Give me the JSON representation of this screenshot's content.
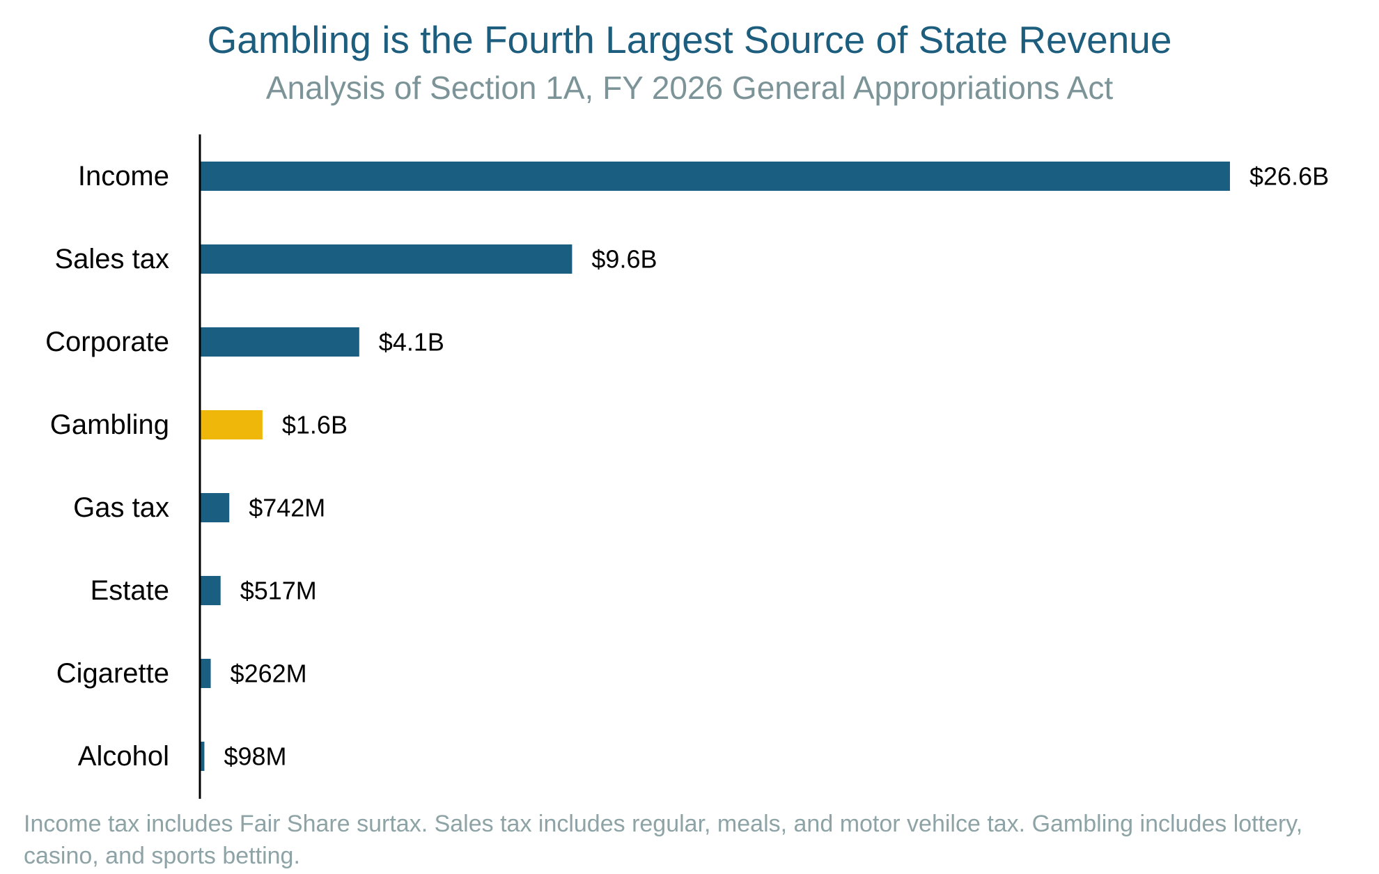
{
  "chart_data": {
    "type": "bar",
    "orientation": "horizontal",
    "title": "Gambling is the Fourth Largest Source of State Revenue",
    "subtitle": "Analysis of Section 1A, FY 2026 General Appropriations Act",
    "categories": [
      "Income",
      "Sales tax",
      "Corporate",
      "Gambling",
      "Gas tax",
      "Estate",
      "Cigarette",
      "Alcohol"
    ],
    "values": [
      26.6,
      9.6,
      4.1,
      1.6,
      0.742,
      0.517,
      0.262,
      0.098
    ],
    "value_unit": "billions of dollars",
    "data_labels": [
      "$26.6B",
      "$9.6B",
      "$4.1B",
      "$1.6B",
      "$742M",
      "$517M",
      "$262M",
      "$98M"
    ],
    "highlight_category": "Gambling",
    "colors": {
      "default": "#1a5f82",
      "highlight": "#f0b70b",
      "axis": "#000000",
      "label": "#000000"
    },
    "xlim": [
      0,
      26.6
    ],
    "grid": false,
    "legend": "none",
    "footnote": "Income tax includes Fair Share surtax. Sales tax includes regular, meals, and motor vehilce tax. Gambling includes lottery, casino, and sports betting."
  }
}
